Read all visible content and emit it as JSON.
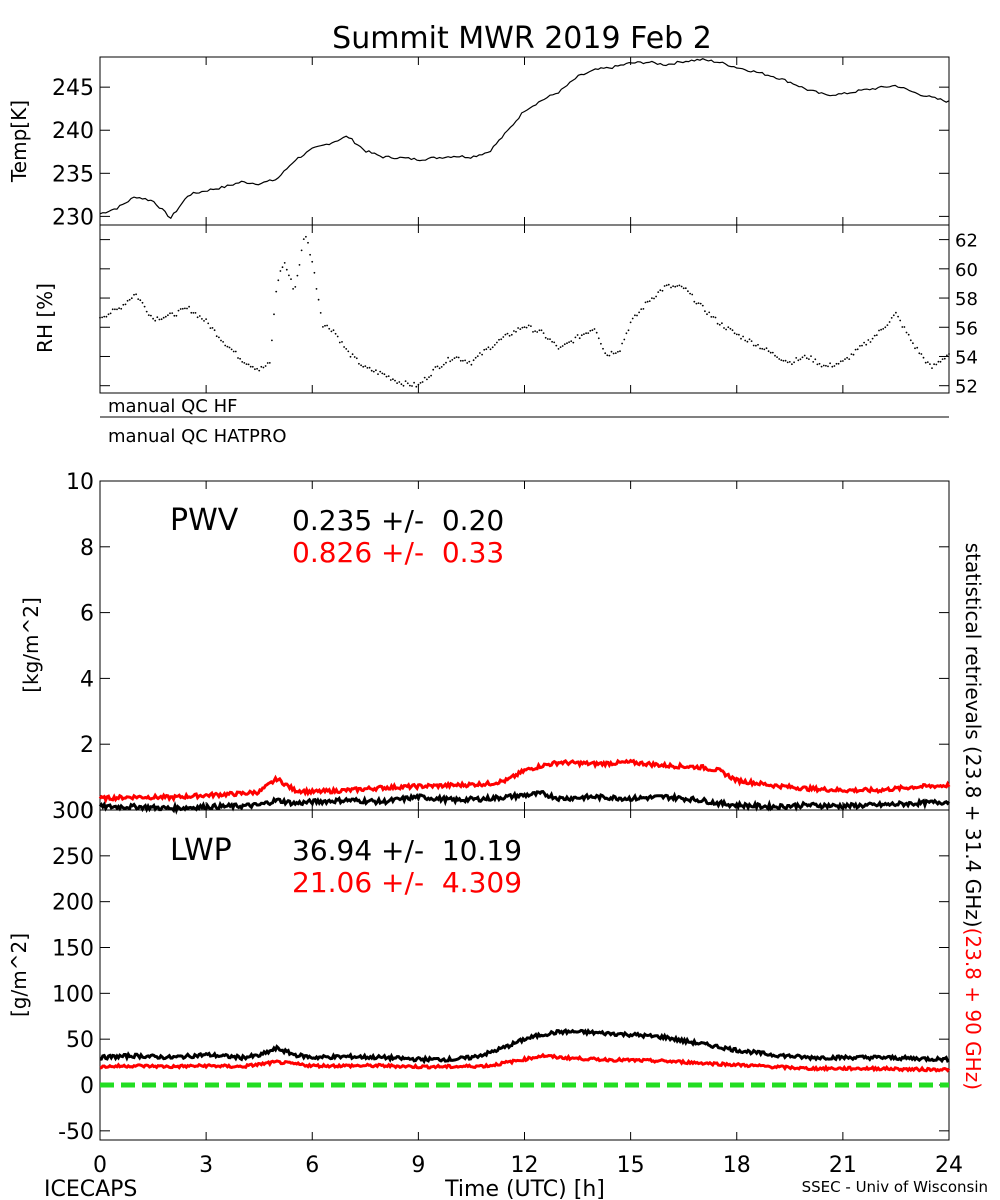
{
  "figure": {
    "title": "Summit MWR 2019 Feb  2",
    "footer_left": "ICECAPS",
    "footer_right": "SSEC - Univ of Wisconsin",
    "right_label_black": "statistical retrievals (23.8 + 31.4 GHz)",
    "right_label_red": "(23.8 + 90 GHz)",
    "qc_labels": [
      "manual QC HF",
      "manual QC HATPRO"
    ],
    "pwv_title": "PWV",
    "pwv_stats": [
      {
        "text": "0.235 +/-  0.20",
        "color": "#000000"
      },
      {
        "text": "0.826 +/-  0.33",
        "color": "#ff0000"
      }
    ],
    "lwp_title": "LWP",
    "lwp_stats": [
      {
        "text": "36.94 +/-  10.19",
        "color": "#000000"
      },
      {
        "text": "21.06 +/-  4.309",
        "color": "#ff0000"
      }
    ]
  },
  "colors": {
    "black_series": "#000000",
    "red_series": "#ff0000",
    "zero_line": "#22dd22"
  },
  "chart_data": [
    {
      "type": "line",
      "title": "Summit MWR 2019 Feb  2",
      "ylabel": "Temp[K]",
      "xlim": [
        0,
        24
      ],
      "ylim": [
        229,
        248.5
      ],
      "yticks": [
        230,
        235,
        240,
        245
      ],
      "series": [
        {
          "color": "#000000",
          "x": [
            0,
            0.5,
            1,
            1.5,
            2,
            2.5,
            3,
            3.5,
            4,
            4.5,
            5,
            5.5,
            6,
            6.5,
            7,
            7.5,
            8,
            8.5,
            9,
            9.5,
            10,
            10.5,
            11,
            11.5,
            12,
            12.5,
            13,
            13.5,
            14,
            14.5,
            15,
            15.5,
            16,
            16.5,
            17,
            17.5,
            18,
            18.5,
            19,
            19.5,
            20,
            20.5,
            21,
            21.5,
            22,
            22.5,
            23,
            23.5,
            24
          ],
          "y": [
            230.3,
            231.0,
            232.3,
            231.8,
            229.8,
            232.5,
            233.0,
            233.4,
            234.0,
            233.8,
            234.3,
            236.5,
            237.8,
            238.5,
            239.3,
            237.6,
            236.9,
            236.8,
            236.6,
            236.8,
            237.0,
            236.9,
            237.5,
            239.8,
            242.3,
            243.5,
            244.5,
            246.2,
            247.0,
            247.3,
            247.8,
            247.9,
            247.6,
            248.0,
            248.2,
            247.9,
            247.3,
            246.8,
            246.3,
            245.6,
            244.7,
            244.1,
            244.2,
            244.6,
            244.9,
            245.2,
            244.4,
            243.8,
            243.3
          ]
        }
      ]
    },
    {
      "type": "scatter",
      "ylabel": "RH [%]",
      "xlim": [
        0,
        24
      ],
      "ylim": [
        51.5,
        63
      ],
      "yticks": [
        52,
        54,
        56,
        58,
        60,
        62
      ],
      "series": [
        {
          "color": "#000000",
          "x": [
            0,
            0.5,
            1,
            1.5,
            2,
            2.5,
            3,
            3.5,
            4,
            4.5,
            4.8,
            5.0,
            5.2,
            5.5,
            5.8,
            6.0,
            6.3,
            6.6,
            7,
            7.5,
            8,
            8.5,
            9,
            9.5,
            10,
            10.5,
            11,
            11.5,
            12,
            12.5,
            13,
            13.5,
            14,
            14.3,
            14.7,
            15,
            15.5,
            16,
            16.5,
            17,
            17.5,
            18,
            18.5,
            19,
            19.5,
            20,
            20.5,
            21,
            21.5,
            22,
            22.5,
            23,
            23.5,
            24
          ],
          "y": [
            56.7,
            57.2,
            58.3,
            56.6,
            56.8,
            57.3,
            56.4,
            55.0,
            53.8,
            53.1,
            53.5,
            59.0,
            60.5,
            58.5,
            62.5,
            60.5,
            56.2,
            55.8,
            54.3,
            53.2,
            52.8,
            52.2,
            52.0,
            53.2,
            54.0,
            53.6,
            54.6,
            55.4,
            56.1,
            55.6,
            54.5,
            55.3,
            56.0,
            54.1,
            54.5,
            56.3,
            57.8,
            58.8,
            58.7,
            57.4,
            56.3,
            55.5,
            54.9,
            54.2,
            53.6,
            54.0,
            53.3,
            53.6,
            54.6,
            55.6,
            56.9,
            54.8,
            53.2,
            54.2
          ]
        }
      ]
    },
    {
      "type": "line",
      "ylabel": "[kg/m^2]",
      "xlim": [
        0,
        24
      ],
      "ylim": [
        0,
        10
      ],
      "yticks": [
        0,
        2,
        4,
        6,
        8,
        10
      ],
      "series": [
        {
          "color": "#ff0000",
          "x": [
            0,
            1,
            2,
            3,
            4,
            4.5,
            5,
            5.5,
            6,
            7,
            8,
            9,
            10,
            11,
            11.5,
            12,
            12.5,
            13,
            14,
            15,
            16,
            17,
            17.5,
            18,
            19,
            20,
            21,
            22,
            23,
            24
          ],
          "y": [
            0.35,
            0.4,
            0.38,
            0.45,
            0.5,
            0.55,
            0.95,
            0.6,
            0.55,
            0.6,
            0.68,
            0.72,
            0.75,
            0.8,
            0.9,
            1.2,
            1.35,
            1.45,
            1.4,
            1.45,
            1.35,
            1.3,
            1.2,
            0.9,
            0.75,
            0.65,
            0.6,
            0.6,
            0.7,
            0.75
          ]
        },
        {
          "color": "#000000",
          "x": [
            0,
            1,
            2,
            3,
            4,
            4.5,
            5,
            5.5,
            6,
            7,
            8,
            9,
            10,
            11,
            12,
            12.5,
            13,
            14,
            15,
            16,
            17,
            17.5,
            18,
            19,
            20,
            21,
            22,
            23,
            24
          ],
          "y": [
            0.1,
            0.1,
            0.05,
            0.1,
            0.12,
            0.15,
            0.3,
            0.2,
            0.25,
            0.3,
            0.25,
            0.4,
            0.3,
            0.35,
            0.45,
            0.5,
            0.35,
            0.4,
            0.35,
            0.4,
            0.3,
            0.2,
            0.15,
            0.1,
            0.15,
            0.12,
            0.15,
            0.2,
            0.25
          ]
        }
      ]
    },
    {
      "type": "line",
      "ylabel": "[g/m^2]",
      "xlabel": "Time (UTC) [h]",
      "xlim": [
        0,
        24
      ],
      "ylim": [
        -60,
        300
      ],
      "yticks": [
        -50,
        0,
        50,
        100,
        150,
        200,
        250,
        300
      ],
      "xticks": [
        0,
        3,
        6,
        9,
        12,
        15,
        18,
        21,
        24
      ],
      "zero_line": {
        "y": 0,
        "color": "#22dd22"
      },
      "series": [
        {
          "color": "#000000",
          "x": [
            0,
            1,
            2,
            3,
            4,
            4.5,
            5,
            5.5,
            6,
            7,
            8,
            9,
            10,
            10.5,
            11,
            11.5,
            12,
            12.5,
            13,
            13.5,
            14,
            15,
            16,
            16.5,
            17,
            18,
            19,
            20,
            21,
            22,
            23,
            24
          ],
          "y": [
            30,
            32,
            30,
            33,
            30,
            32,
            40,
            33,
            30,
            31,
            30,
            28,
            28,
            30,
            35,
            42,
            50,
            55,
            58,
            58,
            57,
            55,
            52,
            48,
            45,
            38,
            33,
            30,
            30,
            30,
            29,
            28
          ]
        },
        {
          "color": "#ff0000",
          "x": [
            0,
            1,
            2,
            3,
            4,
            5,
            6,
            7,
            8,
            9,
            10,
            11,
            12,
            12.5,
            13,
            14,
            15,
            16,
            17,
            18,
            19,
            20,
            21,
            22,
            23,
            24
          ],
          "y": [
            20,
            21,
            20,
            21,
            20,
            25,
            21,
            21,
            21,
            20,
            20,
            21,
            28,
            32,
            30,
            28,
            27,
            26,
            24,
            22,
            20,
            18,
            18,
            18,
            17,
            17
          ]
        }
      ]
    }
  ]
}
